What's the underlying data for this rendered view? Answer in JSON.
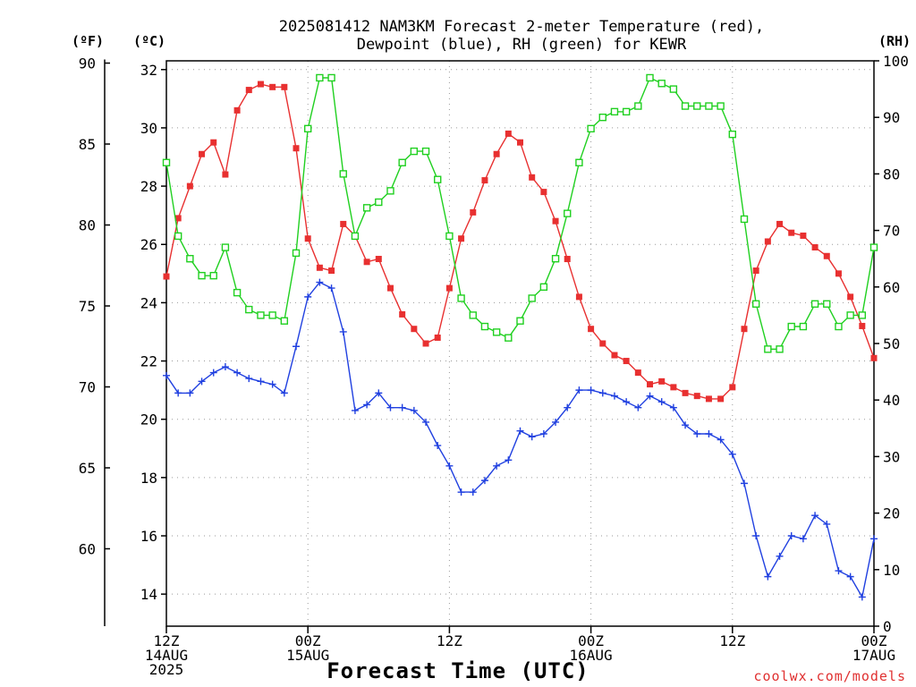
{
  "title_line1": "2025081412 NAM3KM Forecast 2-meter Temperature (red),",
  "title_line2": "Dewpoint (blue), RH (green) for KEWR",
  "units": {
    "f": "(ºF)",
    "c": "(ºC)",
    "rh": "(RH)"
  },
  "credit": "coolwx.com/models",
  "chart_data": {
    "type": "line",
    "title": "2025081412 NAM3KM Forecast 2-meter Temperature (red), Dewpoint (blue), RH (green) for KEWR",
    "xlabel": "Forecast Time (UTC)",
    "x_unit": "hours from 2025-08-14 12Z",
    "x_range": [
      0,
      60
    ],
    "x_ticks": [
      {
        "hour": 0,
        "lines": [
          "12Z",
          "14AUG",
          "2025"
        ]
      },
      {
        "hour": 12,
        "lines": [
          "00Z",
          "15AUG"
        ]
      },
      {
        "hour": 24,
        "lines": [
          "12Z"
        ]
      },
      {
        "hour": 36,
        "lines": [
          "00Z",
          "16AUG"
        ]
      },
      {
        "hour": 48,
        "lines": [
          "12Z"
        ]
      },
      {
        "hour": 60,
        "lines": [
          "00Z",
          "17AUG"
        ]
      }
    ],
    "y_left_c": {
      "label": "(ºC)",
      "range": [
        12.9,
        32.3
      ],
      "ticks": [
        14,
        16,
        18,
        20,
        22,
        24,
        26,
        28,
        30,
        32
      ]
    },
    "y_left_f": {
      "label": "(ºF)",
      "ticks": [
        60,
        65,
        70,
        75,
        80,
        85,
        90
      ]
    },
    "y_right_rh": {
      "label": "(RH)",
      "range": [
        0,
        100
      ],
      "ticks": [
        0,
        10,
        20,
        30,
        40,
        50,
        60,
        70,
        80,
        90,
        100
      ]
    },
    "grid": true,
    "colors": {
      "temperature": "#e83030",
      "dewpoint": "#2040e0",
      "rh": "#20d020"
    },
    "series": [
      {
        "key": "temperature",
        "axis": "celsius",
        "marker": "filled-square",
        "x": [
          0,
          1,
          2,
          3,
          4,
          5,
          6,
          7,
          8,
          9,
          10,
          11,
          12,
          13,
          14,
          15,
          16,
          17,
          18,
          19,
          20,
          21,
          22,
          23,
          24,
          25,
          26,
          27,
          28,
          29,
          30,
          31,
          32,
          33,
          34,
          35,
          36,
          37,
          38,
          39,
          40,
          41,
          42,
          43,
          44,
          45,
          46,
          47,
          48,
          49,
          50,
          51,
          52,
          53,
          54,
          55,
          56,
          57,
          58,
          59,
          60
        ],
        "values": [
          24.9,
          26.9,
          28.0,
          29.1,
          29.5,
          28.4,
          30.6,
          31.3,
          31.5,
          31.4,
          31.4,
          29.3,
          26.2,
          25.2,
          25.1,
          26.7,
          26.3,
          25.4,
          25.5,
          24.5,
          23.6,
          23.1,
          22.6,
          22.8,
          24.5,
          26.2,
          27.1,
          28.2,
          29.1,
          29.8,
          29.5,
          28.3,
          27.8,
          26.8,
          25.5,
          24.2,
          23.1,
          22.6,
          22.2,
          22.0,
          21.6,
          21.2,
          21.3,
          21.1,
          20.9,
          20.8,
          20.7,
          20.7,
          21.1,
          23.1,
          25.1,
          26.1,
          26.7,
          26.4,
          26.3,
          25.9,
          25.6,
          25.0,
          24.2,
          23.2,
          22.1
        ]
      },
      {
        "key": "dewpoint",
        "axis": "celsius",
        "marker": "plus",
        "x": [
          0,
          1,
          2,
          3,
          4,
          5,
          6,
          7,
          8,
          9,
          10,
          11,
          12,
          13,
          14,
          15,
          16,
          17,
          18,
          19,
          20,
          21,
          22,
          23,
          24,
          25,
          26,
          27,
          28,
          29,
          30,
          31,
          32,
          33,
          34,
          35,
          36,
          37,
          38,
          39,
          40,
          41,
          42,
          43,
          44,
          45,
          46,
          47,
          48,
          49,
          50,
          51,
          52,
          53,
          54,
          55,
          56,
          57,
          58,
          59,
          60
        ],
        "values": [
          21.5,
          20.9,
          20.9,
          21.3,
          21.6,
          21.8,
          21.6,
          21.4,
          21.3,
          21.2,
          20.9,
          22.5,
          24.2,
          24.7,
          24.5,
          23.0,
          20.3,
          20.5,
          20.9,
          20.4,
          20.4,
          20.3,
          19.9,
          19.1,
          18.4,
          17.5,
          17.5,
          17.9,
          18.4,
          18.6,
          19.6,
          19.4,
          19.5,
          19.9,
          20.4,
          21.0,
          21.0,
          20.9,
          20.8,
          20.6,
          20.4,
          20.8,
          20.6,
          20.4,
          19.8,
          19.5,
          19.5,
          19.3,
          18.8,
          17.8,
          16.0,
          14.6,
          15.3,
          16.0,
          15.9,
          16.7,
          16.4,
          14.8,
          14.6,
          13.9,
          15.9
        ]
      },
      {
        "key": "rh",
        "axis": "rh",
        "marker": "open-square",
        "x": [
          0,
          1,
          2,
          3,
          4,
          5,
          6,
          7,
          8,
          9,
          10,
          11,
          12,
          13,
          14,
          15,
          16,
          17,
          18,
          19,
          20,
          21,
          22,
          23,
          24,
          25,
          26,
          27,
          28,
          29,
          30,
          31,
          32,
          33,
          34,
          35,
          36,
          37,
          38,
          39,
          40,
          41,
          42,
          43,
          44,
          45,
          46,
          47,
          48,
          49,
          50,
          51,
          52,
          53,
          54,
          55,
          56,
          57,
          58,
          59,
          60
        ],
        "values": [
          82,
          69,
          65,
          62,
          62,
          67,
          59,
          56,
          55,
          55,
          54,
          66,
          88,
          97,
          97,
          80,
          69,
          74,
          75,
          77,
          82,
          84,
          84,
          79,
          69,
          58,
          55,
          53,
          52,
          51,
          54,
          58,
          60,
          65,
          73,
          82,
          88,
          90,
          91,
          91,
          92,
          97,
          96,
          95,
          92,
          92,
          92,
          92,
          87,
          72,
          57,
          49,
          49,
          53,
          53,
          57,
          57,
          53,
          55,
          55,
          67
        ]
      }
    ]
  }
}
